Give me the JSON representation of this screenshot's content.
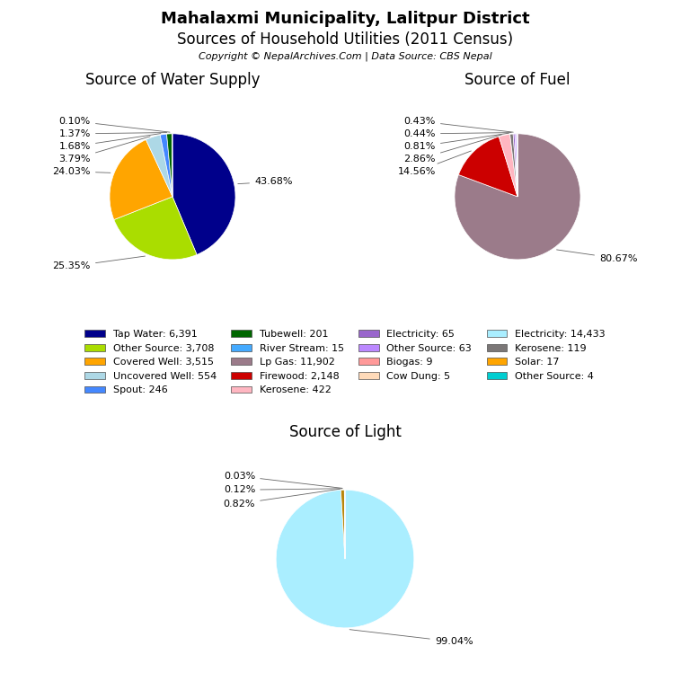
{
  "title": "Mahalaxmi Municipality, Lalitpur District",
  "subtitle": "Sources of Household Utilities (2011 Census)",
  "annotations": [
    "Copyright © NepalArchives.Com | Data Source: CBS Nepal"
  ],
  "series": [
    {
      "name": "Tap Water: 6,391",
      "color": "#00008B"
    },
    {
      "name": "Other Source: 3,708",
      "color": "#AADD00"
    },
    {
      "name": "Covered Well: 3,515",
      "color": "#FFA500"
    },
    {
      "name": "Uncovered Well: 554",
      "color": "#ADD8E6"
    },
    {
      "name": "Spout: 246",
      "color": "#4488FF"
    },
    {
      "name": "Tubewell: 201",
      "color": "#006600"
    },
    {
      "name": "River Stream: 15",
      "color": "#44AAFF"
    },
    {
      "name": "Lp Gas: 11,902",
      "color": "#9B7B8A"
    },
    {
      "name": "Firewood: 2,148",
      "color": "#CC0000"
    },
    {
      "name": "Kerosene: 422",
      "color": "#FFB6C1"
    },
    {
      "name": "Electricity: 65",
      "color": "#9966CC"
    },
    {
      "name": "Other Source: 63",
      "color": "#BB88FF"
    },
    {
      "name": "Biogas: 9",
      "color": "#FF9999"
    },
    {
      "name": "Cow Dung: 5",
      "color": "#FFDAB9"
    },
    {
      "name": "Electricity: 14,433",
      "color": "#AAEEFF"
    },
    {
      "name": "Kerosene: 119",
      "color": "#7B7777"
    },
    {
      "name": "Solar: 17",
      "color": "#FFA500"
    },
    {
      "name": "Other Source: 4",
      "color": "#00CED1"
    }
  ],
  "chart_data": [
    {
      "type": "pie",
      "title": "Source of Water Supply",
      "values": [
        43.68,
        25.35,
        24.03,
        3.79,
        1.68,
        1.37,
        0.1
      ],
      "value_labels": [
        "43.68%",
        "25.35%",
        "24.03%",
        "3.79%",
        "1.68%",
        "1.37%",
        "0.10%"
      ],
      "colors": [
        "#00008B",
        "#AADD00",
        "#FFA500",
        "#ADD8E6",
        "#4488FF",
        "#006600",
        "#44AAFF"
      ],
      "data_labels": true
    },
    {
      "type": "pie",
      "title": "Source of Fuel",
      "values": [
        80.67,
        14.56,
        2.86,
        0.81,
        0.44,
        0.43,
        0.12,
        0.06,
        0.03,
        0.03
      ],
      "value_labels": [
        "80.67%",
        "14.56%",
        "2.86%",
        "0.81%",
        "0.44%",
        "0.43%",
        null,
        null,
        null,
        null
      ],
      "colors": [
        "#9B7B8A",
        "#CC0000",
        "#FFB6C1",
        "#7B7777",
        "#9966CC",
        "#BB88FF",
        "#FFA500",
        "#FF9999",
        "#FFDAB9",
        "#00BFFF"
      ],
      "data_labels": true
    },
    {
      "type": "pie",
      "title": "Source of Light",
      "values": [
        99.04,
        0.82,
        0.12,
        0.03
      ],
      "value_labels": [
        "99.04%",
        "0.82%",
        "0.12%",
        "0.03%"
      ],
      "colors": [
        "#AAEEFF",
        "#B8860B",
        "#FFA500",
        "#00CED1"
      ],
      "data_labels": true
    }
  ]
}
